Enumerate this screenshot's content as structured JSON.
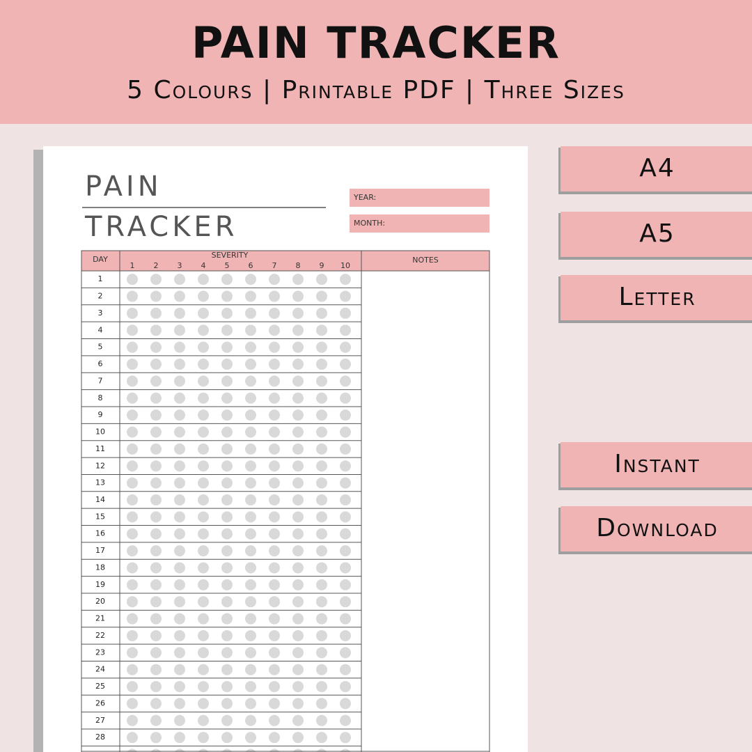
{
  "header": {
    "title": "PAIN TRACKER",
    "subtitle": "5 Colours | Printable PDF | Three Sizes"
  },
  "sheet": {
    "title_line1": "PAIN",
    "title_line2": "TRACKER",
    "year_label": "YEAR:",
    "month_label": "MONTH:",
    "table": {
      "day_header": "DAY",
      "severity_header": "SEVERITY",
      "notes_header": "NOTES",
      "severity_levels": [
        1,
        2,
        3,
        4,
        5,
        6,
        7,
        8,
        9,
        10
      ],
      "days": [
        1,
        2,
        3,
        4,
        5,
        6,
        7,
        8,
        9,
        10,
        11,
        12,
        13,
        14,
        15,
        16,
        17,
        18,
        19,
        20,
        21,
        22,
        23,
        24,
        25,
        26,
        27,
        28
      ]
    }
  },
  "sizes": [
    "A4",
    "A5",
    "Letter"
  ],
  "delivery": [
    "Instant",
    "Download"
  ]
}
